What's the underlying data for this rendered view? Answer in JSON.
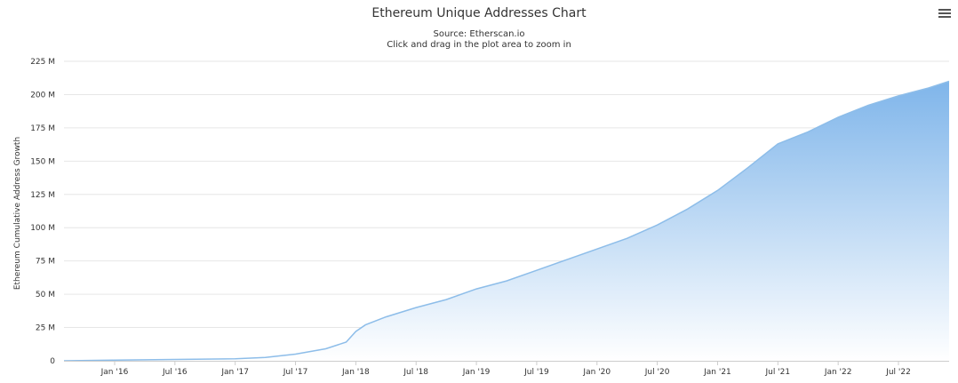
{
  "colors": {
    "area_top": "#7fb5ea",
    "area_bottom": "#ffffff",
    "line": "#8dbde9",
    "grid": "#e6e6e6",
    "menu_icon": "#555555"
  },
  "menu": {
    "icon": "hamburger-menu-icon"
  },
  "chart_data": {
    "type": "area",
    "title": "Ethereum Unique Addresses Chart",
    "subtitle_source": "Source: Etherscan.io",
    "subtitle_hint": "Click and drag in the plot area to zoom in",
    "ylabel": "Ethereum Cumulative Address Growth",
    "xlabel": "",
    "ylim": [
      0,
      225
    ],
    "y_ticks": [
      0,
      25,
      50,
      75,
      100,
      125,
      150,
      175,
      200,
      225
    ],
    "y_tick_labels": [
      "0",
      "25 M",
      "50 M",
      "75 M",
      "100 M",
      "125 M",
      "150 M",
      "175 M",
      "200 M",
      "225 M"
    ],
    "xlim": [
      2015.58,
      2022.92
    ],
    "x_ticks": [
      2016.0,
      2016.5,
      2017.0,
      2017.5,
      2018.0,
      2018.5,
      2019.0,
      2019.5,
      2020.0,
      2020.5,
      2021.0,
      2021.5,
      2022.0,
      2022.5
    ],
    "x_tick_labels": [
      "Jan '16",
      "Jul '16",
      "Jan '17",
      "Jul '17",
      "Jan '18",
      "Jul '18",
      "Jan '19",
      "Jul '19",
      "Jan '20",
      "Jul '20",
      "Jan '21",
      "Jul '21",
      "Jan '22",
      "Jul '22"
    ],
    "grid": true,
    "legend": "none",
    "series": [
      {
        "name": "Ethereum Cumulative Address Growth",
        "x": [
          2015.58,
          2016.0,
          2016.5,
          2017.0,
          2017.25,
          2017.5,
          2017.75,
          2017.92,
          2018.0,
          2018.08,
          2018.25,
          2018.5,
          2018.75,
          2019.0,
          2019.25,
          2019.5,
          2019.75,
          2020.0,
          2020.25,
          2020.5,
          2020.75,
          2021.0,
          2021.25,
          2021.5,
          2021.75,
          2022.0,
          2022.25,
          2022.5,
          2022.75,
          2022.92
        ],
        "values": [
          0,
          0.5,
          1,
          1.5,
          2.5,
          5,
          9,
          14,
          22,
          27,
          33,
          40,
          46,
          54,
          60,
          68,
          76,
          84,
          92,
          102,
          114,
          128,
          145,
          163,
          172,
          183,
          192,
          199,
          205,
          210
        ]
      }
    ]
  }
}
